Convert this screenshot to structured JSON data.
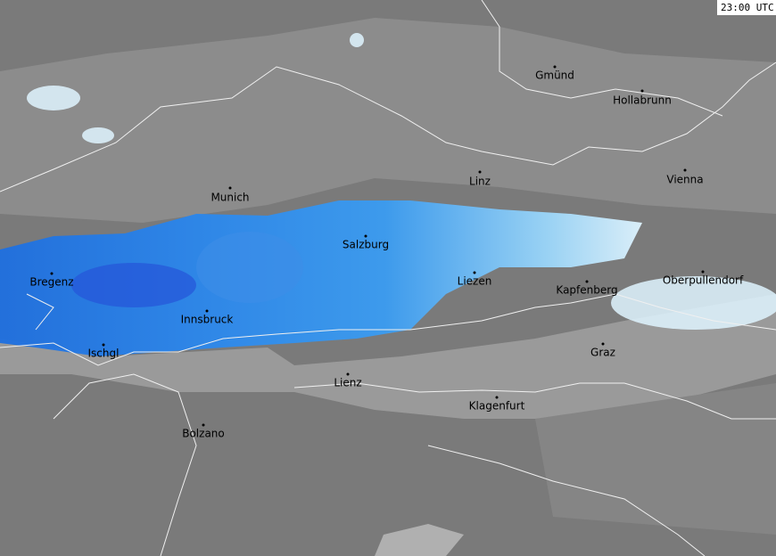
{
  "timestamp": "23:00 UTC",
  "cities": [
    "Gmünd",
    "Hollabrunn",
    "Linz",
    "Vienna",
    "Munich",
    "Salzburg",
    "Liezen",
    "Kapfenberg",
    "Oberpullendorf",
    "Bregenz",
    "Innsbruck",
    "Ischgl",
    "Graz",
    "Lienz",
    "Klagenfurt",
    "Bolzano"
  ]
}
